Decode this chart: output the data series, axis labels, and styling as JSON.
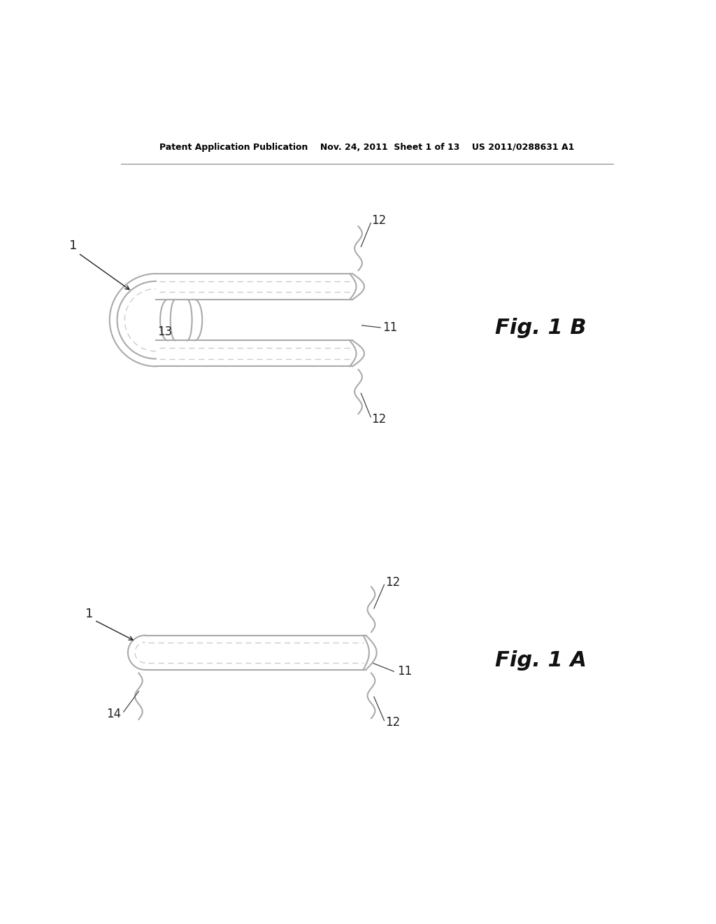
{
  "bg_color": "#ffffff",
  "line_color": "#aaaaaa",
  "dash_color": "#cccccc",
  "text_color": "#000000",
  "label_color": "#222222",
  "header_text": "Patent Application Publication    Nov. 24, 2011  Sheet 1 of 13    US 2011/0288631 A1",
  "fig1b_label": "Fig. 1 B",
  "fig1a_label": "Fig. 1 A",
  "lw_main": 1.5,
  "lw_dash": 1.0,
  "label_fontsize": 12,
  "fig_label_fontsize": 22,
  "header_fontsize": 9
}
